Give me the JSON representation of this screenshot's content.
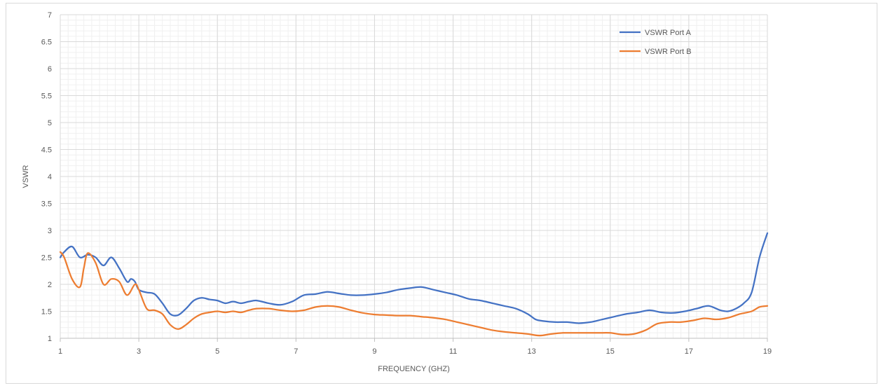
{
  "chart_data": {
    "type": "line",
    "title": "",
    "xlabel": "FREQUENCY (GHZ)",
    "ylabel": "VSWR",
    "xlim": [
      1,
      19
    ],
    "ylim": [
      1,
      7
    ],
    "x_ticks": [
      1,
      3,
      5,
      7,
      9,
      11,
      13,
      15,
      17,
      19
    ],
    "y_ticks": [
      1,
      1.5,
      2,
      2.5,
      3,
      3.5,
      4,
      4.5,
      5,
      5.5,
      6,
      6.5,
      7
    ],
    "grid": true,
    "legend_position": "top-right",
    "series": [
      {
        "name": "VSWR Port A",
        "color": "#4472c4",
        "x": [
          1.0,
          1.1,
          1.3,
          1.5,
          1.7,
          1.9,
          2.1,
          2.3,
          2.5,
          2.7,
          2.8,
          2.9,
          3.0,
          3.2,
          3.4,
          3.6,
          3.8,
          4.0,
          4.2,
          4.4,
          4.6,
          4.8,
          5.0,
          5.2,
          5.4,
          5.6,
          5.8,
          6.0,
          6.3,
          6.6,
          6.9,
          7.2,
          7.5,
          7.8,
          8.1,
          8.4,
          8.7,
          9.0,
          9.3,
          9.6,
          9.9,
          10.2,
          10.5,
          10.8,
          11.1,
          11.4,
          11.7,
          12.0,
          12.3,
          12.6,
          12.9,
          13.1,
          13.3,
          13.6,
          13.9,
          14.2,
          14.5,
          14.8,
          15.1,
          15.4,
          15.7,
          16.0,
          16.3,
          16.6,
          16.9,
          17.2,
          17.5,
          17.8,
          18.0,
          18.2,
          18.4,
          18.6,
          18.8,
          19.0
        ],
        "values": [
          2.5,
          2.6,
          2.7,
          2.5,
          2.55,
          2.5,
          2.35,
          2.5,
          2.3,
          2.05,
          2.1,
          2.05,
          1.9,
          1.85,
          1.82,
          1.65,
          1.45,
          1.43,
          1.55,
          1.7,
          1.75,
          1.72,
          1.7,
          1.65,
          1.68,
          1.65,
          1.68,
          1.7,
          1.65,
          1.62,
          1.68,
          1.8,
          1.82,
          1.86,
          1.83,
          1.8,
          1.8,
          1.82,
          1.85,
          1.9,
          1.93,
          1.95,
          1.9,
          1.85,
          1.8,
          1.73,
          1.7,
          1.65,
          1.6,
          1.55,
          1.45,
          1.35,
          1.32,
          1.3,
          1.3,
          1.28,
          1.3,
          1.35,
          1.4,
          1.45,
          1.48,
          1.52,
          1.48,
          1.47,
          1.5,
          1.55,
          1.6,
          1.52,
          1.5,
          1.55,
          1.65,
          1.85,
          2.5,
          2.95
        ]
      },
      {
        "name": "VSWR Port B",
        "color": "#ed7d31",
        "x": [
          1.0,
          1.1,
          1.3,
          1.5,
          1.6,
          1.7,
          1.9,
          2.1,
          2.3,
          2.5,
          2.7,
          2.9,
          3.0,
          3.2,
          3.4,
          3.6,
          3.8,
          4.0,
          4.2,
          4.4,
          4.6,
          4.8,
          5.0,
          5.2,
          5.4,
          5.6,
          5.8,
          6.0,
          6.3,
          6.6,
          6.9,
          7.2,
          7.5,
          7.8,
          8.1,
          8.4,
          8.7,
          9.0,
          9.3,
          9.6,
          9.9,
          10.2,
          10.5,
          10.8,
          11.1,
          11.4,
          11.7,
          12.0,
          12.3,
          12.6,
          12.9,
          13.2,
          13.5,
          13.8,
          14.1,
          14.4,
          14.7,
          15.0,
          15.3,
          15.6,
          15.9,
          16.2,
          16.5,
          16.8,
          17.1,
          17.4,
          17.7,
          18.0,
          18.3,
          18.6,
          18.8,
          19.0
        ],
        "values": [
          2.6,
          2.5,
          2.1,
          1.95,
          2.3,
          2.58,
          2.4,
          2.0,
          2.1,
          2.05,
          1.8,
          2.0,
          1.9,
          1.55,
          1.52,
          1.45,
          1.25,
          1.17,
          1.25,
          1.37,
          1.45,
          1.48,
          1.5,
          1.48,
          1.5,
          1.48,
          1.52,
          1.55,
          1.55,
          1.52,
          1.5,
          1.52,
          1.58,
          1.6,
          1.58,
          1.52,
          1.47,
          1.44,
          1.43,
          1.42,
          1.42,
          1.4,
          1.38,
          1.35,
          1.3,
          1.25,
          1.2,
          1.15,
          1.12,
          1.1,
          1.08,
          1.05,
          1.08,
          1.1,
          1.1,
          1.1,
          1.1,
          1.1,
          1.07,
          1.08,
          1.15,
          1.27,
          1.3,
          1.3,
          1.33,
          1.37,
          1.35,
          1.38,
          1.45,
          1.5,
          1.58,
          1.6
        ]
      }
    ]
  }
}
